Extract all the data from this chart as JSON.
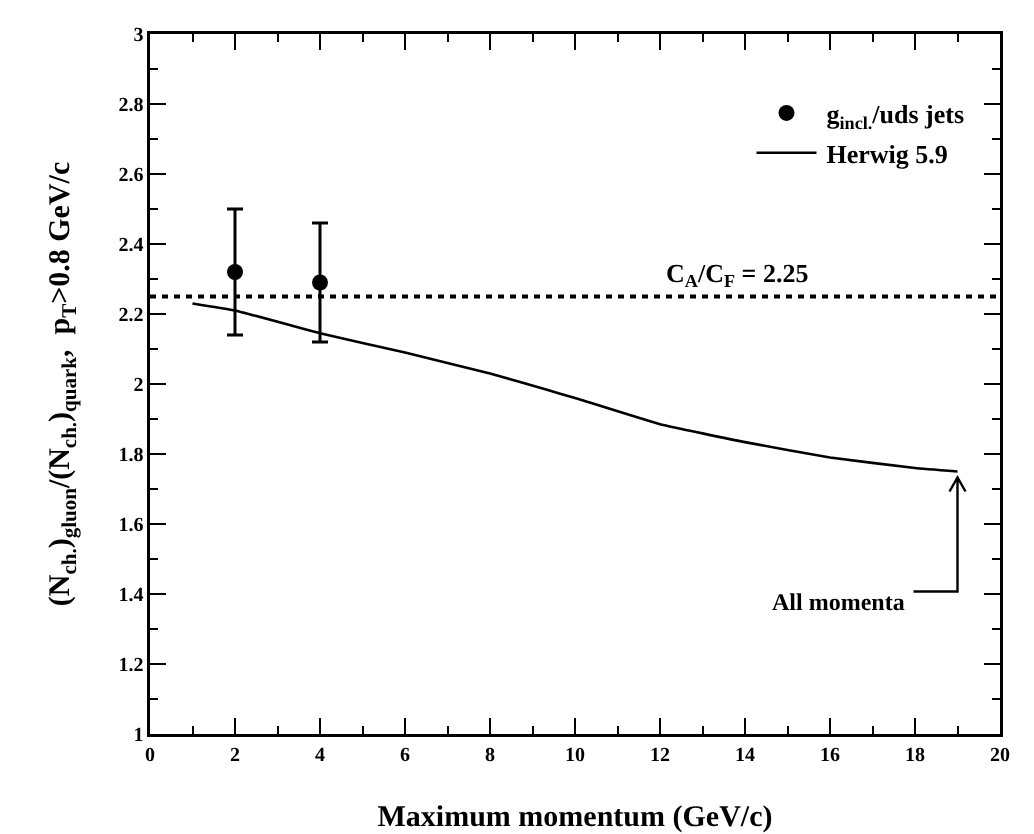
{
  "chart_data": {
    "type": "scatter",
    "xlabel": "Maximum momentum (GeV/c)",
    "ylabel": "(N$_{ch.}$)$_{gluon}$/(N$_{ch.}$)$_{quark}$,  p$_{T}$>0.8 GeV/c",
    "xlim": [
      0,
      20
    ],
    "xticks": [
      0,
      2,
      4,
      6,
      8,
      10,
      12,
      14,
      16,
      18,
      20
    ],
    "ylim": [
      1,
      3
    ],
    "yticks": [
      1,
      1.2,
      1.4,
      1.6,
      1.8,
      2,
      2.2,
      2.4,
      2.6,
      2.8,
      3
    ],
    "grid": false,
    "legend": "top right",
    "series": [
      {
        "name": "g$_{incl.}$/uds jets",
        "marker": "circle",
        "color": "#000000",
        "x": [
          2,
          4
        ],
        "values": [
          2.32,
          2.29
        ],
        "errors": [
          [
            2.14,
            2.5
          ],
          [
            2.12,
            2.46
          ]
        ]
      },
      {
        "name": "Herwig 5.9",
        "type": "line",
        "marker": "none",
        "color": "#000000",
        "line_style": "solid",
        "x": [
          1,
          2,
          4,
          6,
          8,
          9.3,
          10,
          12,
          14,
          16,
          18,
          19
        ],
        "values": [
          2.23,
          2.21,
          2.145,
          2.09,
          2.03,
          1.985,
          1.96,
          1.885,
          1.834,
          1.79,
          1.76,
          1.75
        ]
      }
    ],
    "ref_lines": [
      {
        "axis": "y",
        "value": 2.25,
        "label": "C$_{A}$/C$_{F}$ = 2.25",
        "color": "#000000",
        "line_style": "dotted"
      }
    ],
    "annotations": [
      {
        "text": "All momenta",
        "x": 19,
        "y": 1.75
      }
    ]
  }
}
